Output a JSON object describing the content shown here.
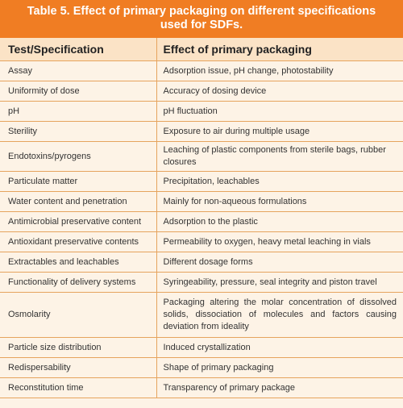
{
  "table": {
    "title_line1": "Table 5. Effect of primary packaging on different specifications",
    "title_line2": "used for SDFs.",
    "header": {
      "col1": "Test/Specification",
      "col2": "Effect of primary packaging"
    },
    "rows": [
      {
        "spec": "Assay",
        "effect": "Adsorption issue, pH change, photostability"
      },
      {
        "spec": "Uniformity of dose",
        "effect": "Accuracy of dosing device"
      },
      {
        "spec": "pH",
        "effect": "pH fluctuation"
      },
      {
        "spec": "Sterility",
        "effect": "Exposure to air during multiple usage"
      },
      {
        "spec": "Endotoxins/pyrogens",
        "effect": "Leaching of plastic components from sterile bags, rubber closures"
      },
      {
        "spec": "Particulate matter",
        "effect": "Precipitation, leachables"
      },
      {
        "spec": "Water content and penetration",
        "effect": "Mainly for non-aqueous formulations"
      },
      {
        "spec": "Antimicrobial preservative content",
        "effect": "Adsorption to the plastic"
      },
      {
        "spec": "Antioxidant preservative contents",
        "effect": "Permeability to oxygen, heavy metal leaching in vials"
      },
      {
        "spec": "Extractables and leachables",
        "effect": "Different dosage forms"
      },
      {
        "spec": "Functionality of delivery systems",
        "effect": "Syringeability, pressure, seal integrity and piston travel"
      },
      {
        "spec": "Osmolarity",
        "effect": "Packaging altering the molar concentration of dissolved solids, dissociation of molecules and factors causing deviation from ideality"
      },
      {
        "spec": "Particle size distribution",
        "effect": "Induced crystallization"
      },
      {
        "spec": "Redispersability",
        "effect": "Shape of primary packaging"
      },
      {
        "spec": "Reconstitution time",
        "effect": "Transparency of primary package"
      }
    ]
  }
}
